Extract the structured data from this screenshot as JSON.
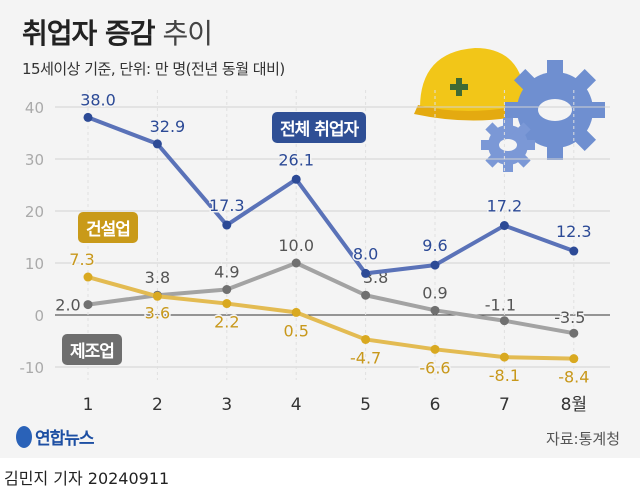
{
  "title_bold": "취업자 증감",
  "title_light": "추이",
  "subtitle": "15세이상 기준, 단위: 만 명(전년 동월 대비)",
  "source": "자료:통계청",
  "logo_text": "연합뉴스",
  "byline": "김민지 기자 20240911",
  "chart_data": {
    "type": "line",
    "categories": [
      "1",
      "2",
      "3",
      "4",
      "5",
      "6",
      "7",
      "8월"
    ],
    "ylim": [
      -10,
      40
    ],
    "yticks": [
      "40",
      "30",
      "20",
      "10",
      "0",
      "-10"
    ],
    "grid": true,
    "series": [
      {
        "name": "전체 취업자",
        "color": "#5a72b8",
        "label_color": "#2c4a96",
        "tag_color": "#2f4f95",
        "values": [
          38.0,
          32.9,
          17.3,
          26.1,
          8.0,
          9.6,
          17.2,
          12.3
        ],
        "labels": [
          "38.0",
          "32.9",
          "17.3",
          "26.1",
          "8.0",
          "9.6",
          "17.2",
          "12.3"
        ]
      },
      {
        "name": "제조업",
        "color": "#a3a3a3",
        "label_color": "#555555",
        "tag_color": "#6e6e6e",
        "values": [
          2.0,
          3.8,
          4.9,
          10.0,
          3.8,
          0.9,
          -1.1,
          -3.5
        ],
        "labels": [
          "2.0",
          "3.8",
          "4.9",
          "10.0",
          "3.8",
          "0.9",
          "-1.1",
          "-3.5"
        ]
      },
      {
        "name": "건설업",
        "color": "#e3bb52",
        "label_color": "#c8981b",
        "tag_color": "#c99a19",
        "values": [
          7.3,
          3.6,
          2.2,
          0.5,
          -4.7,
          -6.6,
          -8.1,
          -8.4
        ],
        "labels": [
          "7.3",
          "3.6",
          "2.2",
          "0.5",
          "-4.7",
          "-6.6",
          "-8.1",
          "-8.4"
        ]
      }
    ]
  }
}
